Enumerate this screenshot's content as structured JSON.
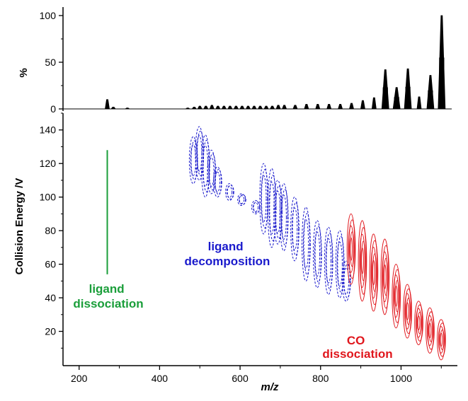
{
  "chart_data": [
    {
      "type": "bar",
      "panel": "top spectrum",
      "ylabel": "%",
      "xlim": [
        160,
        1140
      ],
      "ylim": [
        0,
        100
      ],
      "yticks": [
        "0",
        "50",
        "100"
      ],
      "peaks": [
        {
          "x": 270,
          "y": 10
        },
        {
          "x": 285,
          "y": 2
        },
        {
          "x": 320,
          "y": 1
        },
        {
          "x": 470,
          "y": 1
        },
        {
          "x": 486,
          "y": 2
        },
        {
          "x": 500,
          "y": 3
        },
        {
          "x": 515,
          "y": 3
        },
        {
          "x": 530,
          "y": 4
        },
        {
          "x": 545,
          "y": 3
        },
        {
          "x": 560,
          "y": 3
        },
        {
          "x": 575,
          "y": 3
        },
        {
          "x": 590,
          "y": 3
        },
        {
          "x": 605,
          "y": 3
        },
        {
          "x": 620,
          "y": 3
        },
        {
          "x": 635,
          "y": 3
        },
        {
          "x": 650,
          "y": 3
        },
        {
          "x": 665,
          "y": 3
        },
        {
          "x": 680,
          "y": 3
        },
        {
          "x": 695,
          "y": 4
        },
        {
          "x": 710,
          "y": 4
        },
        {
          "x": 737,
          "y": 4
        },
        {
          "x": 765,
          "y": 5
        },
        {
          "x": 793,
          "y": 5
        },
        {
          "x": 821,
          "y": 5
        },
        {
          "x": 849,
          "y": 5
        },
        {
          "x": 877,
          "y": 6
        },
        {
          "x": 905,
          "y": 9
        },
        {
          "x": 933,
          "y": 12
        },
        {
          "x": 961,
          "y": 42
        },
        {
          "x": 989,
          "y": 23
        },
        {
          "x": 1017,
          "y": 43
        },
        {
          "x": 1045,
          "y": 13
        },
        {
          "x": 1073,
          "y": 36
        },
        {
          "x": 1101,
          "y": 100
        }
      ]
    },
    {
      "type": "scatter",
      "panel": "bottom contour map",
      "xlabel": "m/z",
      "ylabel": "Collision Energy /V",
      "xlim": [
        160,
        1140
      ],
      "ylim": [
        0,
        150
      ],
      "xticks": [
        "200",
        "400",
        "600",
        "800",
        "1000"
      ],
      "yticks": [
        "20",
        "40",
        "60",
        "80",
        "100",
        "120",
        "140"
      ],
      "series": [
        {
          "color": "#1a9e3a",
          "lines": [
            {
              "x": 270,
              "ymin": 54,
              "ymax": 128
            }
          ]
        },
        {
          "color": "#1a1acc",
          "islands": [
            {
              "x": 485,
              "ymin": 108,
              "ymax": 136
            },
            {
              "x": 500,
              "ymin": 110,
              "ymax": 142
            },
            {
              "x": 515,
              "ymin": 100,
              "ymax": 137
            },
            {
              "x": 530,
              "ymin": 102,
              "ymax": 128
            },
            {
              "x": 545,
              "ymin": 100,
              "ymax": 118
            },
            {
              "x": 575,
              "ymin": 98,
              "ymax": 108
            },
            {
              "x": 605,
              "ymin": 95,
              "ymax": 102
            },
            {
              "x": 640,
              "ymin": 90,
              "ymax": 98
            },
            {
              "x": 660,
              "ymin": 78,
              "ymax": 120
            },
            {
              "x": 680,
              "ymin": 70,
              "ymax": 117
            },
            {
              "x": 695,
              "ymin": 72,
              "ymax": 110
            },
            {
              "x": 710,
              "ymin": 68,
              "ymax": 108
            },
            {
              "x": 737,
              "ymin": 62,
              "ymax": 100
            },
            {
              "x": 765,
              "ymin": 50,
              "ymax": 94
            },
            {
              "x": 793,
              "ymin": 46,
              "ymax": 86
            },
            {
              "x": 821,
              "ymin": 42,
              "ymax": 82
            },
            {
              "x": 849,
              "ymin": 40,
              "ymax": 80
            },
            {
              "x": 865,
              "ymin": 38,
              "ymax": 62
            }
          ]
        },
        {
          "color": "#e0161c",
          "islands": [
            {
              "x": 877,
              "ymin": 48,
              "ymax": 90
            },
            {
              "x": 905,
              "ymin": 38,
              "ymax": 86
            },
            {
              "x": 933,
              "ymin": 32,
              "ymax": 78
            },
            {
              "x": 961,
              "ymin": 30,
              "ymax": 75
            },
            {
              "x": 989,
              "ymin": 22,
              "ymax": 60
            },
            {
              "x": 1017,
              "ymin": 16,
              "ymax": 48
            },
            {
              "x": 1045,
              "ymin": 12,
              "ymax": 38
            },
            {
              "x": 1073,
              "ymin": 7,
              "ymax": 34
            },
            {
              "x": 1101,
              "ymin": 3,
              "ymax": 27
            }
          ]
        }
      ],
      "annotations": [
        {
          "lines": [
            "ligand",
            "dissociation"
          ],
          "color": "#1a9e3a"
        },
        {
          "lines": [
            "ligand",
            "decomposition"
          ],
          "color": "#1a1acc"
        },
        {
          "lines": [
            "CO",
            "dissociation"
          ],
          "color": "#e0161c"
        }
      ]
    }
  ]
}
